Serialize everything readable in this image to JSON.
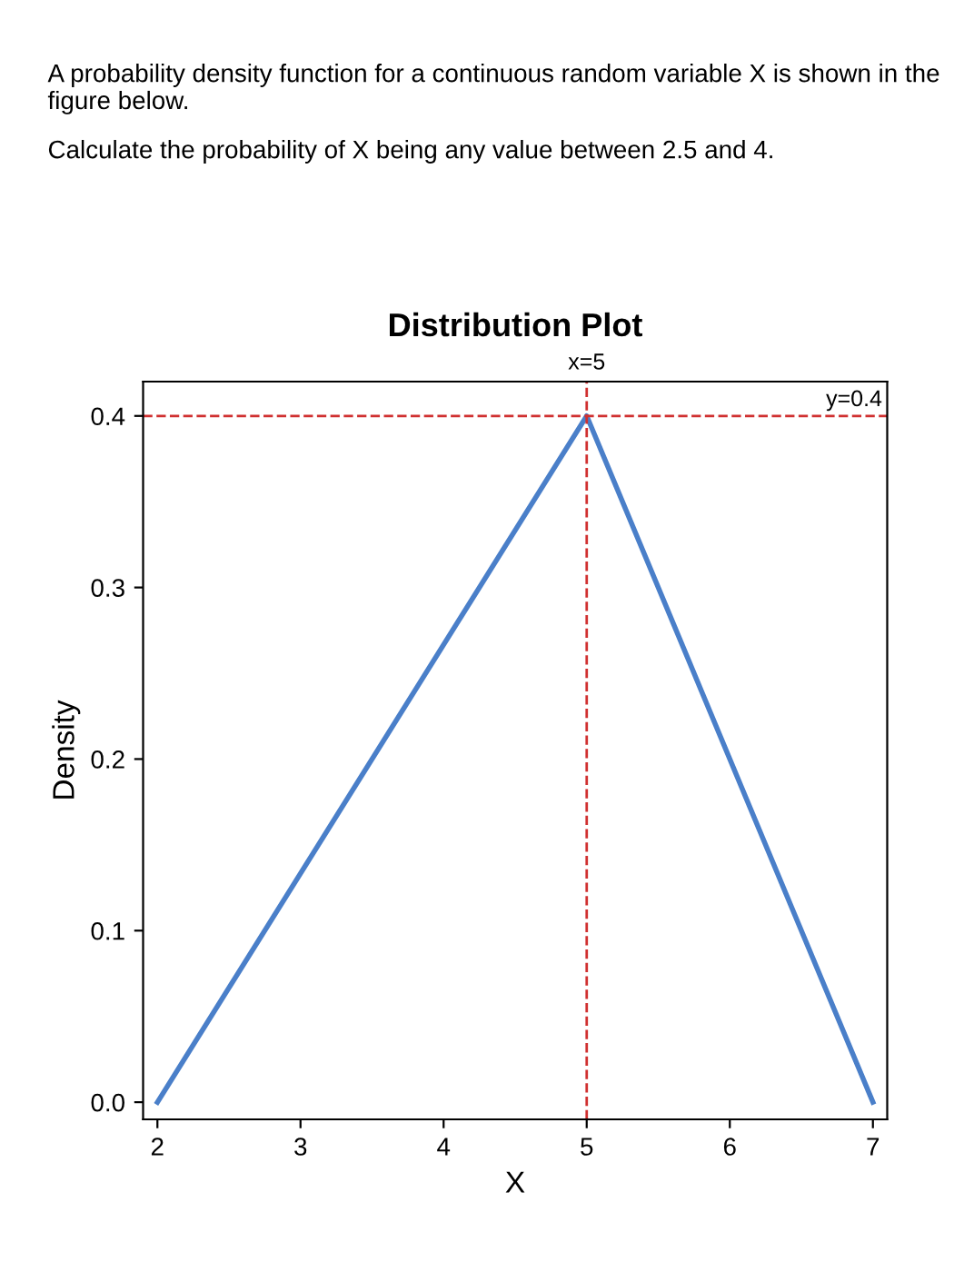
{
  "chart_data": {
    "type": "line",
    "title": "Distribution Plot",
    "xlabel": "X",
    "ylabel": "Density",
    "annotations": [
      "A probability density function for a continuous random variable X is shown in the figure below.",
      "Calculate the probability of X being any value between 2.5 and 4."
    ],
    "x": [
      2,
      5,
      7
    ],
    "series": [
      {
        "color": "#4a7fc9",
        "values": [
          0,
          0.4,
          0
        ]
      }
    ],
    "xlim": [
      1.9,
      7.1
    ],
    "ylim": [
      -0.01,
      0.42
    ],
    "xticks": [
      2,
      3,
      4,
      5,
      6,
      7
    ],
    "yticks": [
      {
        "value": 0,
        "label": "0.0"
      },
      0.1,
      0.2,
      0.3,
      0.4
    ],
    "ref_lines": [
      {
        "axis": "x",
        "value": 5,
        "label": "x=5",
        "color": "#d03030",
        "line_style": "dashed"
      },
      {
        "axis": "y",
        "value": 0.4,
        "label": "y=0.4",
        "color": "#d03030",
        "line_style": "dashed"
      }
    ],
    "grid": false,
    "marker": "none",
    "line_style": "solid"
  }
}
